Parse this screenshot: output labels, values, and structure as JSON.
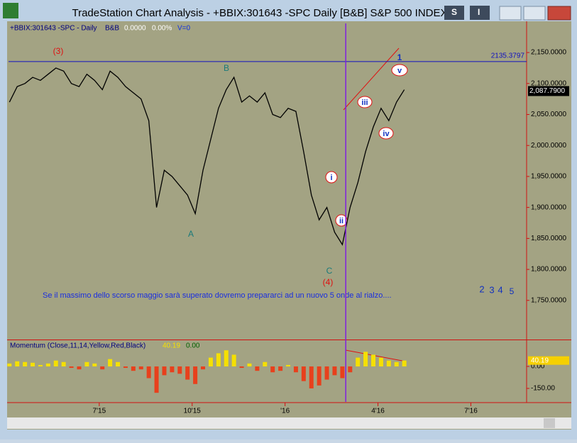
{
  "window": {
    "title": "TradeStation Chart Analysis - +BBIX:301643 -SPC Daily [B&B] S&P 500 INDEX",
    "menu_buttons": [
      "S",
      "I"
    ]
  },
  "chart_data": [
    {
      "type": "line",
      "header": [
        "+BBIX:301643 -SPC - Daily",
        "B&B",
        "0.0000",
        "0.00%",
        "V=0"
      ],
      "color": "#000000",
      "x": [
        3.1,
        3.35,
        3.6,
        3.85,
        4.1,
        4.35,
        4.6,
        4.85,
        5.1,
        5.35,
        5.6,
        5.85,
        6.1,
        6.35,
        6.6,
        6.85,
        7.1,
        7.35,
        7.6,
        7.85,
        8.1,
        8.35,
        8.6,
        8.85,
        9.1,
        9.35,
        9.6,
        9.85,
        10.1,
        10.35,
        10.6,
        10.85,
        11.1,
        11.35,
        11.6,
        11.85,
        12.1,
        12.35,
        12.6,
        12.85,
        13.1,
        13.35,
        13.6,
        13.85,
        14.1,
        14.35,
        14.6,
        14.85,
        15.1,
        15.35,
        15.6,
        15.85
      ],
      "values": [
        2070,
        2095,
        2100,
        2110,
        2105,
        2115,
        2125,
        2120,
        2100,
        2095,
        2115,
        2105,
        2090,
        2120,
        2110,
        2095,
        2085,
        2075,
        2040,
        1900,
        1960,
        1950,
        1935,
        1920,
        1890,
        1960,
        2010,
        2060,
        2090,
        2110,
        2070,
        2080,
        2070,
        2085,
        2050,
        2045,
        2060,
        2055,
        1990,
        1920,
        1880,
        1900,
        1860,
        1840,
        1900,
        1940,
        1990,
        2030,
        2060,
        2040,
        2070,
        2090
      ],
      "xlim": [
        3.07,
        19.8
      ],
      "ylim": [
        1688,
        2197
      ],
      "xticks": [
        {
          "value": 6,
          "label": "7'15"
        },
        {
          "value": 9,
          "label": "10'15"
        },
        {
          "value": 12,
          "label": "'16"
        },
        {
          "value": 15,
          "label": "4'16"
        },
        {
          "value": 18,
          "label": "7'16"
        }
      ],
      "yticks": [
        {
          "value": 2150,
          "label": "2,150.0000"
        },
        {
          "value": 2100,
          "label": "2,100.0000"
        },
        {
          "value": 2050,
          "label": "2,050.0000"
        },
        {
          "value": 2000,
          "label": "2,000.0000"
        },
        {
          "value": 1950,
          "label": "1,950.0000"
        },
        {
          "value": 1900,
          "label": "1,900.0000"
        },
        {
          "value": 1850,
          "label": "1,850.0000"
        },
        {
          "value": 1800,
          "label": "1,800.0000"
        },
        {
          "value": 1750,
          "label": "1,750.0000"
        }
      ],
      "hline": 2135.3797,
      "vline": 13.96,
      "last": {
        "value": 2087.79,
        "label": "2,087.7900"
      },
      "annotations": [
        "(3)",
        "B",
        "A",
        "C",
        "(4)",
        "1",
        "i",
        "ii",
        "iii",
        "iv",
        "v",
        "2",
        "3",
        "4",
        "5",
        "Se il massimo dello scorso maggio sarà superato dovremo prepararci ad un nuovo 5 onde al rialzo...."
      ]
    },
    {
      "type": "bar",
      "header": [
        "Momentum (Close,11,14,Yellow,Red,Black)",
        "40.19",
        "0.00"
      ],
      "colors": {
        "up": "#f5e000",
        "down": "#e8401c"
      },
      "values": [
        20,
        35,
        30,
        25,
        10,
        20,
        40,
        30,
        -10,
        -20,
        30,
        20,
        -20,
        50,
        30,
        -10,
        -30,
        -20,
        -80,
        -180,
        -60,
        -40,
        -50,
        -90,
        -120,
        -20,
        60,
        90,
        110,
        80,
        -10,
        20,
        -30,
        30,
        -40,
        -30,
        10,
        -40,
        -100,
        -150,
        -130,
        -90,
        -60,
        -80,
        -40,
        60,
        100,
        80,
        60,
        40,
        30,
        40.19
      ],
      "ylim": [
        -242,
        174
      ],
      "yticks": [
        {
          "value": 0,
          "label": "0.00"
        },
        {
          "value": -150,
          "label": "-150.00"
        }
      ],
      "last": 40.19
    }
  ]
}
